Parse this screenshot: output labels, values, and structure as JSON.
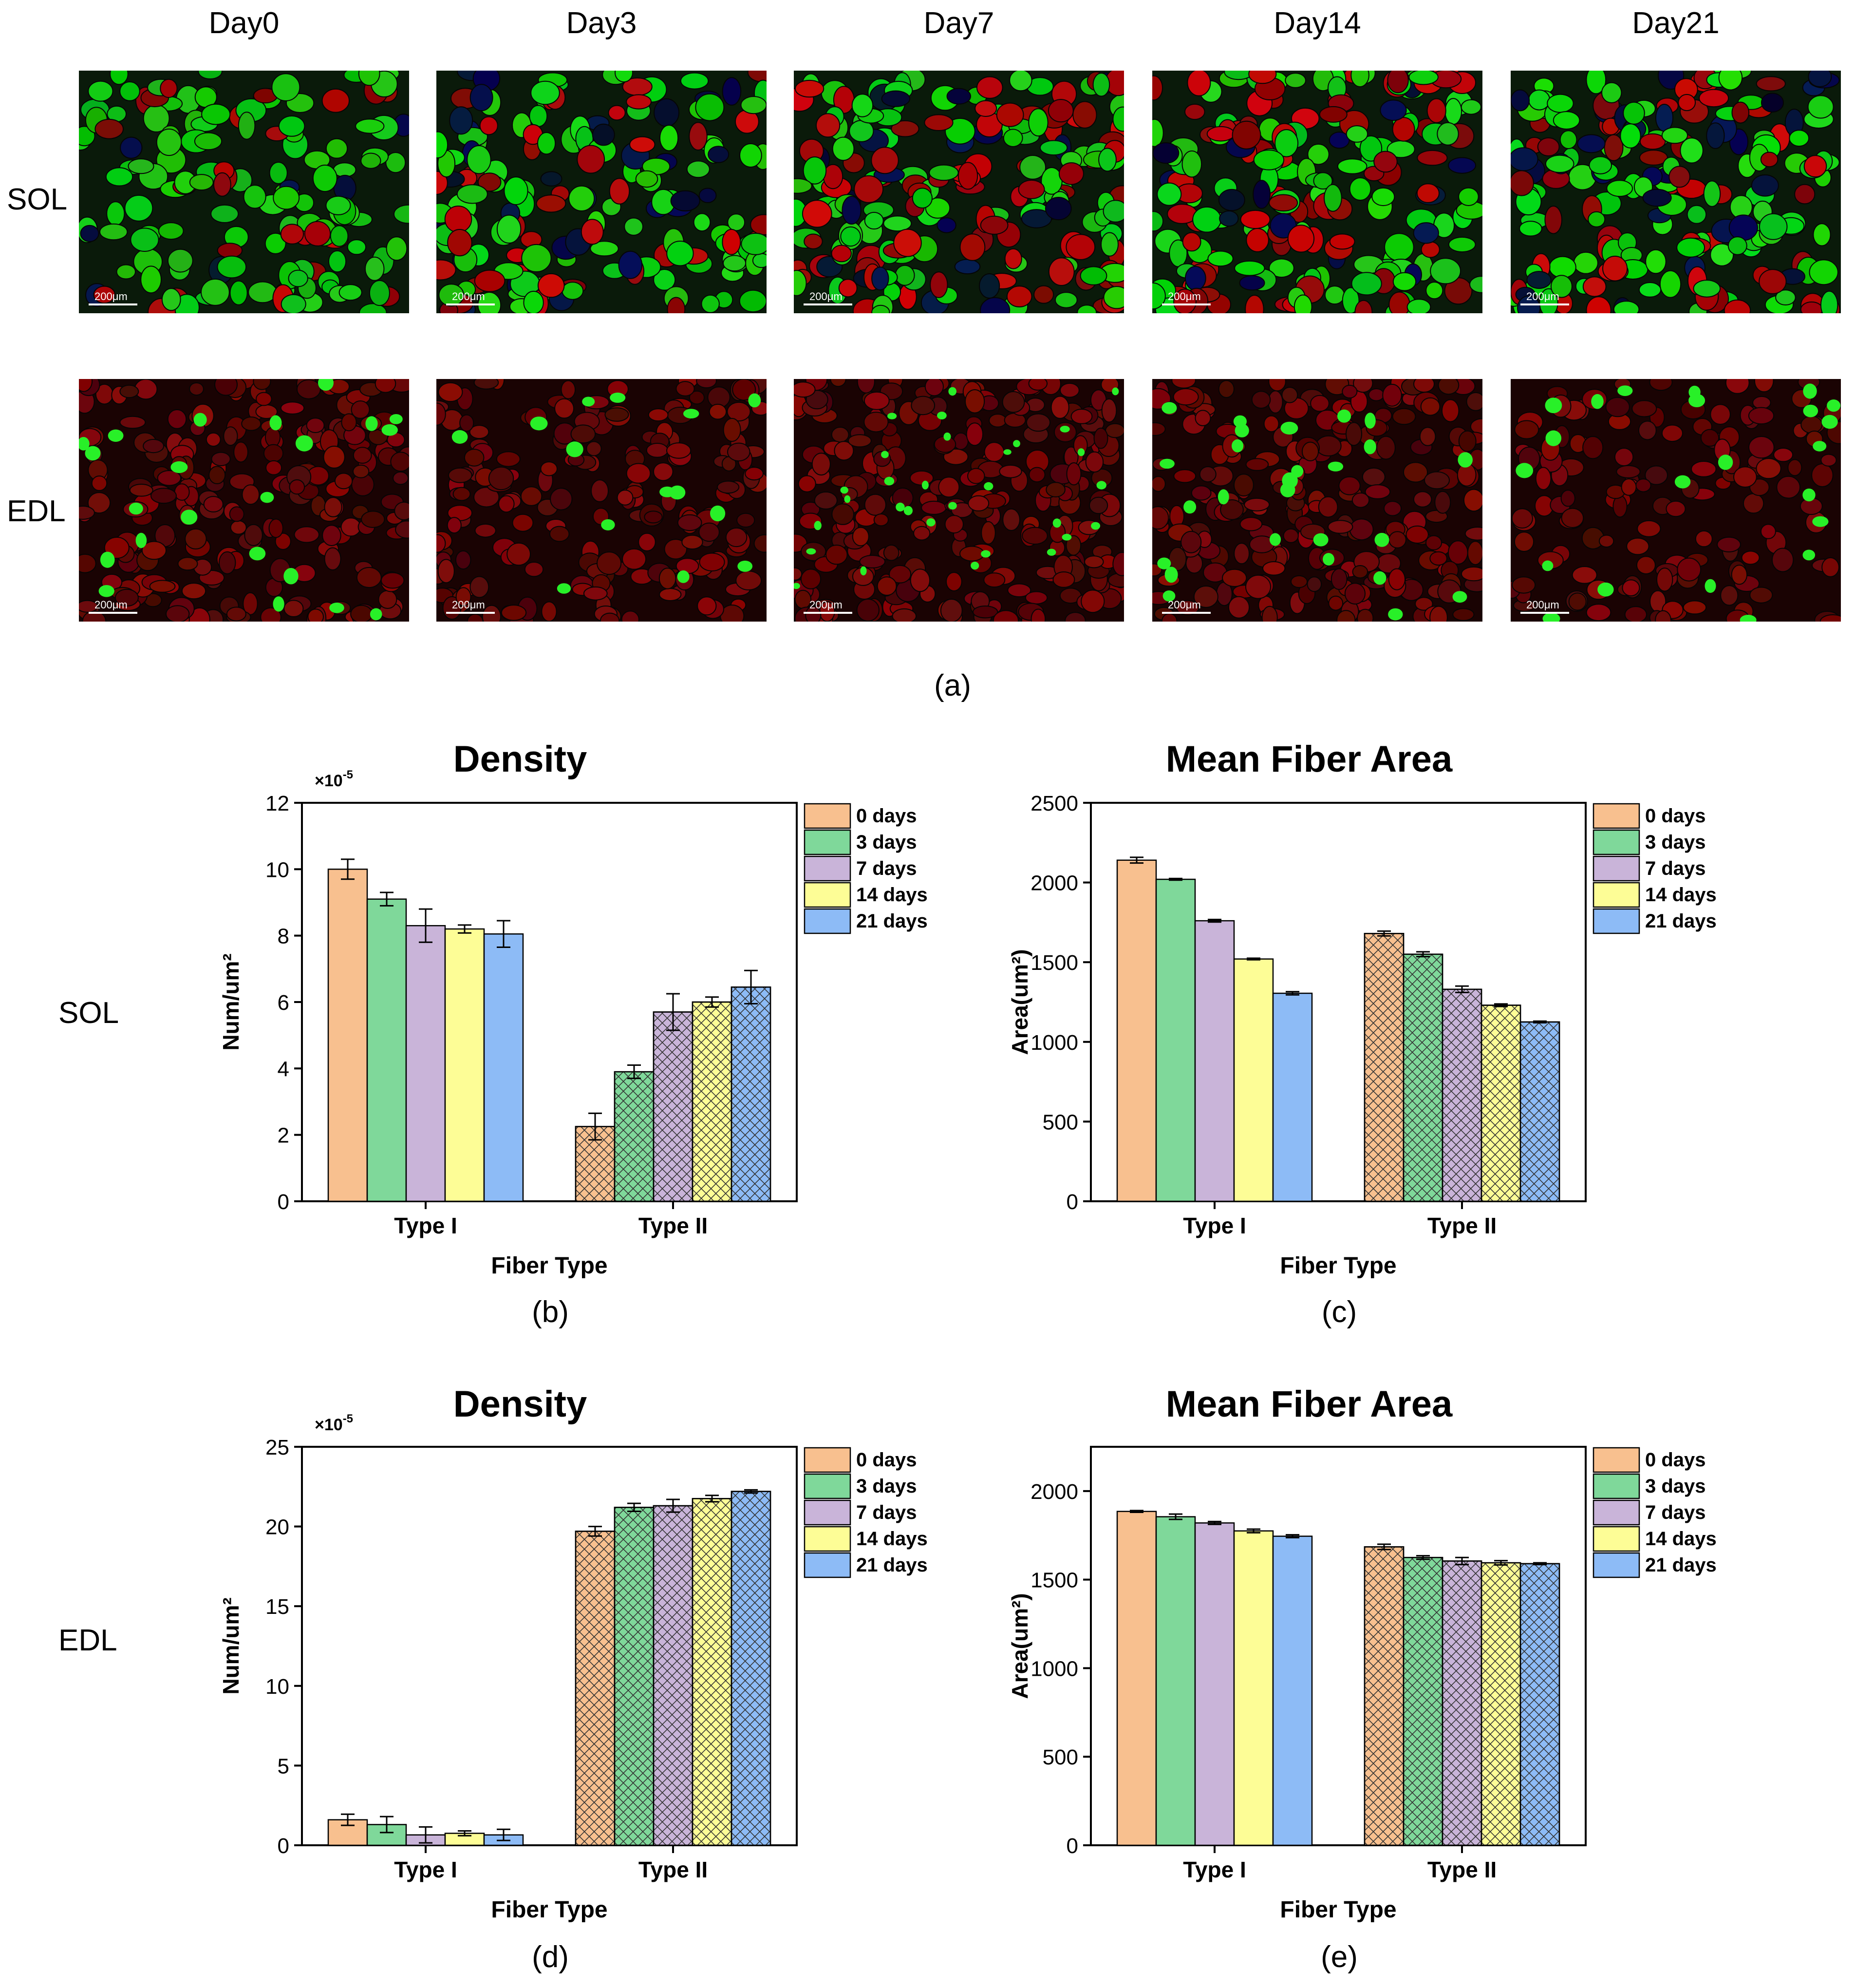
{
  "panel_a": {
    "columns": [
      "Day0",
      "Day3",
      "Day7",
      "Day14",
      "Day21"
    ],
    "rows": [
      "SOL",
      "EDL"
    ],
    "scale_bar": "200μm",
    "letter": "(a)"
  },
  "row_labels": {
    "sol": "SOL",
    "edl": "EDL"
  },
  "panel_letters": {
    "b": "(b)",
    "c": "(c)",
    "d": "(d)",
    "e": "(e)"
  },
  "colors": {
    "0 days": "#f8c08f",
    "3 days": "#7fd89a",
    "7 days": "#c9b4d9",
    "14 days": "#fdfd96",
    "21 days": "#8dbbf6"
  },
  "chart_data": [
    {
      "id": "b",
      "type": "bar",
      "title": "Density",
      "xlabel": "Fiber Type",
      "ylabel": "Num/um²",
      "multiplier": "×10",
      "multiplier_exp": "-5",
      "ylim": [
        0,
        12
      ],
      "yticks": [
        0,
        2,
        4,
        6,
        8,
        10,
        12
      ],
      "categories": [
        "Type I",
        "Type II"
      ],
      "hatched_categories": [
        "Type II"
      ],
      "legend_position": "top-right",
      "grid": false,
      "series": [
        {
          "name": "0 days",
          "values": [
            10.0,
            2.25
          ],
          "errors": [
            0.3,
            0.4
          ]
        },
        {
          "name": "3 days",
          "values": [
            9.1,
            3.9
          ],
          "errors": [
            0.2,
            0.2
          ]
        },
        {
          "name": "7 days",
          "values": [
            8.3,
            5.7
          ],
          "errors": [
            0.5,
            0.55
          ]
        },
        {
          "name": "14 days",
          "values": [
            8.2,
            6.0
          ],
          "errors": [
            0.12,
            0.15
          ]
        },
        {
          "name": "21 days",
          "values": [
            8.05,
            6.45
          ],
          "errors": [
            0.4,
            0.5
          ]
        }
      ]
    },
    {
      "id": "c",
      "type": "bar",
      "title": "Mean Fiber Area",
      "xlabel": "Fiber Type",
      "ylabel": "Area(um²)",
      "ylim": [
        0,
        2500
      ],
      "yticks": [
        0,
        500,
        1000,
        1500,
        2000,
        2500
      ],
      "categories": [
        "Type I",
        "Type II"
      ],
      "hatched_categories": [
        "Type II"
      ],
      "legend_position": "top-right",
      "grid": false,
      "series": [
        {
          "name": "0 days",
          "values": [
            2140,
            1680
          ],
          "errors": [
            18,
            15
          ]
        },
        {
          "name": "3 days",
          "values": [
            2020,
            1550
          ],
          "errors": [
            5,
            15
          ]
        },
        {
          "name": "7 days",
          "values": [
            1760,
            1330
          ],
          "errors": [
            8,
            20
          ]
        },
        {
          "name": "14 days",
          "values": [
            1520,
            1230
          ],
          "errors": [
            5,
            8
          ]
        },
        {
          "name": "21 days",
          "values": [
            1305,
            1125
          ],
          "errors": [
            10,
            5
          ]
        }
      ]
    },
    {
      "id": "d",
      "type": "bar",
      "title": "Density",
      "xlabel": "Fiber Type",
      "ylabel": "Num/um²",
      "multiplier": "×10",
      "multiplier_exp": "-5",
      "ylim": [
        0,
        25
      ],
      "yticks": [
        0,
        5,
        10,
        15,
        20,
        25
      ],
      "categories": [
        "Type I",
        "Type II"
      ],
      "hatched_categories": [
        "Type II"
      ],
      "legend_position": "top-right",
      "grid": false,
      "series": [
        {
          "name": "0 days",
          "values": [
            1.6,
            19.7
          ],
          "errors": [
            0.35,
            0.3
          ]
        },
        {
          "name": "3 days",
          "values": [
            1.3,
            21.2
          ],
          "errors": [
            0.5,
            0.25
          ]
        },
        {
          "name": "7 days",
          "values": [
            0.65,
            21.3
          ],
          "errors": [
            0.5,
            0.4
          ]
        },
        {
          "name": "14 days",
          "values": [
            0.75,
            21.75
          ],
          "errors": [
            0.15,
            0.2
          ]
        },
        {
          "name": "21 days",
          "values": [
            0.65,
            22.2
          ],
          "errors": [
            0.35,
            0.1
          ]
        }
      ]
    },
    {
      "id": "e",
      "type": "bar",
      "title": "Mean Fiber Area",
      "xlabel": "Fiber Type",
      "ylabel": "Area(um²)",
      "ylim": [
        0,
        2250
      ],
      "yticks": [
        0,
        500,
        1000,
        1500,
        2000
      ],
      "categories": [
        "Type I",
        "Type II"
      ],
      "hatched_categories": [
        "Type II"
      ],
      "legend_position": "top-right",
      "grid": false,
      "series": [
        {
          "name": "0 days",
          "values": [
            1885,
            1685
          ],
          "errors": [
            5,
            15
          ]
        },
        {
          "name": "3 days",
          "values": [
            1855,
            1625
          ],
          "errors": [
            15,
            10
          ]
        },
        {
          "name": "7 days",
          "values": [
            1820,
            1605
          ],
          "errors": [
            8,
            20
          ]
        },
        {
          "name": "14 days",
          "values": [
            1775,
            1595
          ],
          "errors": [
            10,
            12
          ]
        },
        {
          "name": "21 days",
          "values": [
            1745,
            1590
          ],
          "errors": [
            8,
            5
          ]
        }
      ]
    }
  ]
}
